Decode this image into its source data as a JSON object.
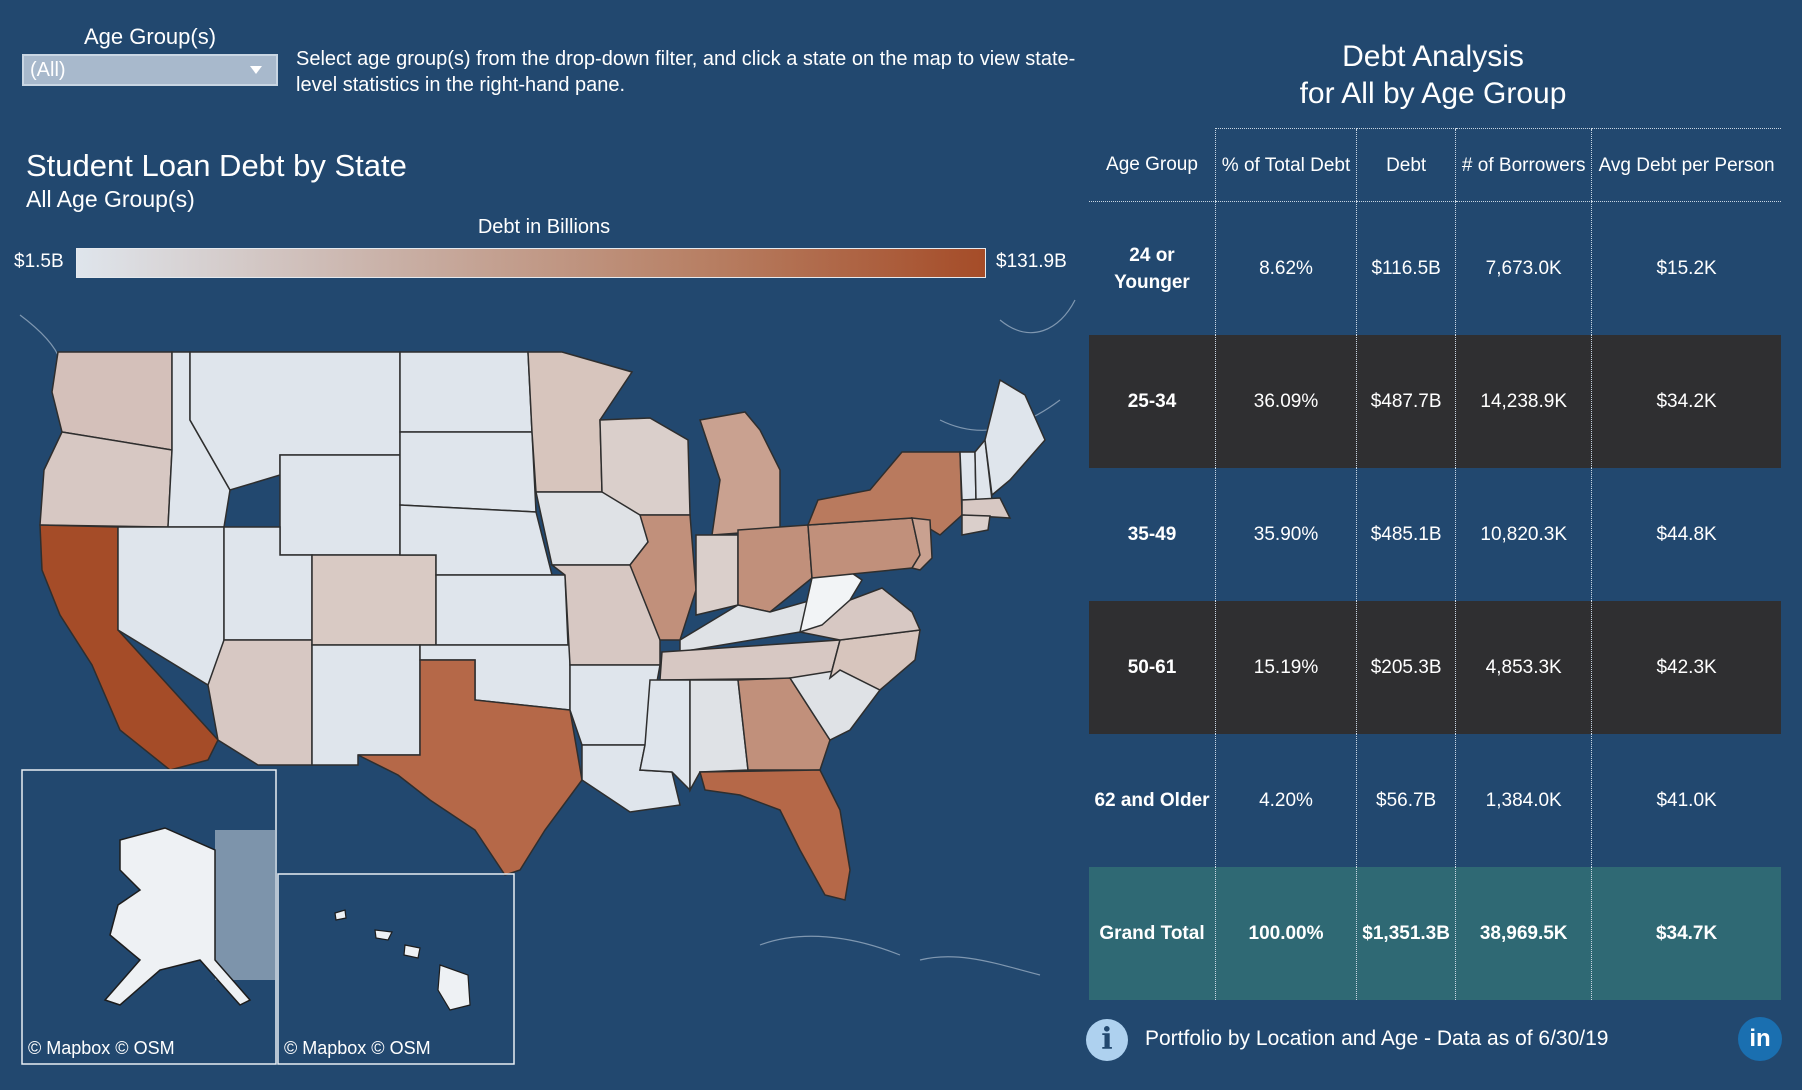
{
  "filter": {
    "label": "Age Group(s)",
    "value": "(All)"
  },
  "instructions": "Select age group(s) from the drop-down filter, and click a state on the map to view state-level statistics in the right-hand pane.",
  "map": {
    "title": "Student Loan Debt by State",
    "subtitle": "All Age Group(s)",
    "legend_title": "Debt in Billions",
    "legend_min": "$1.5B",
    "legend_max": "$131.9B",
    "credit": "© Mapbox  © OSM",
    "color_scale": [
      "#dfe5ec",
      "#a54c28"
    ]
  },
  "analysis": {
    "title_line1": "Debt Analysis",
    "title_line2": "for All by Age Group",
    "headers": {
      "age": "Age Group",
      "pct": "% of Total Debt",
      "debt": "Debt",
      "borrowers": "# of Borrowers",
      "avg": "Avg Debt per Person"
    },
    "rows": [
      {
        "age": "24 or Younger",
        "pct": "8.62%",
        "debt": "$116.5B",
        "borrowers": "7,673.0K",
        "avg": "$15.2K"
      },
      {
        "age": "25-34",
        "pct": "36.09%",
        "debt": "$487.7B",
        "borrowers": "14,238.9K",
        "avg": "$34.2K"
      },
      {
        "age": "35-49",
        "pct": "35.90%",
        "debt": "$485.1B",
        "borrowers": "10,820.3K",
        "avg": "$44.8K"
      },
      {
        "age": "50-61",
        "pct": "15.19%",
        "debt": "$205.3B",
        "borrowers": "4,853.3K",
        "avg": "$42.3K"
      },
      {
        "age": "62 and Older",
        "pct": "4.20%",
        "debt": "$56.7B",
        "borrowers": "1,384.0K",
        "avg": "$41.0K"
      }
    ],
    "total": {
      "age": "Grand Total",
      "pct": "100.00%",
      "debt": "$1,351.3B",
      "borrowers": "38,969.5K",
      "avg": "$34.7K"
    }
  },
  "footer": {
    "text": "Portfolio by Location and Age - Data as of 6/30/19",
    "info_glyph": "i",
    "linkedin_glyph": "in"
  }
}
